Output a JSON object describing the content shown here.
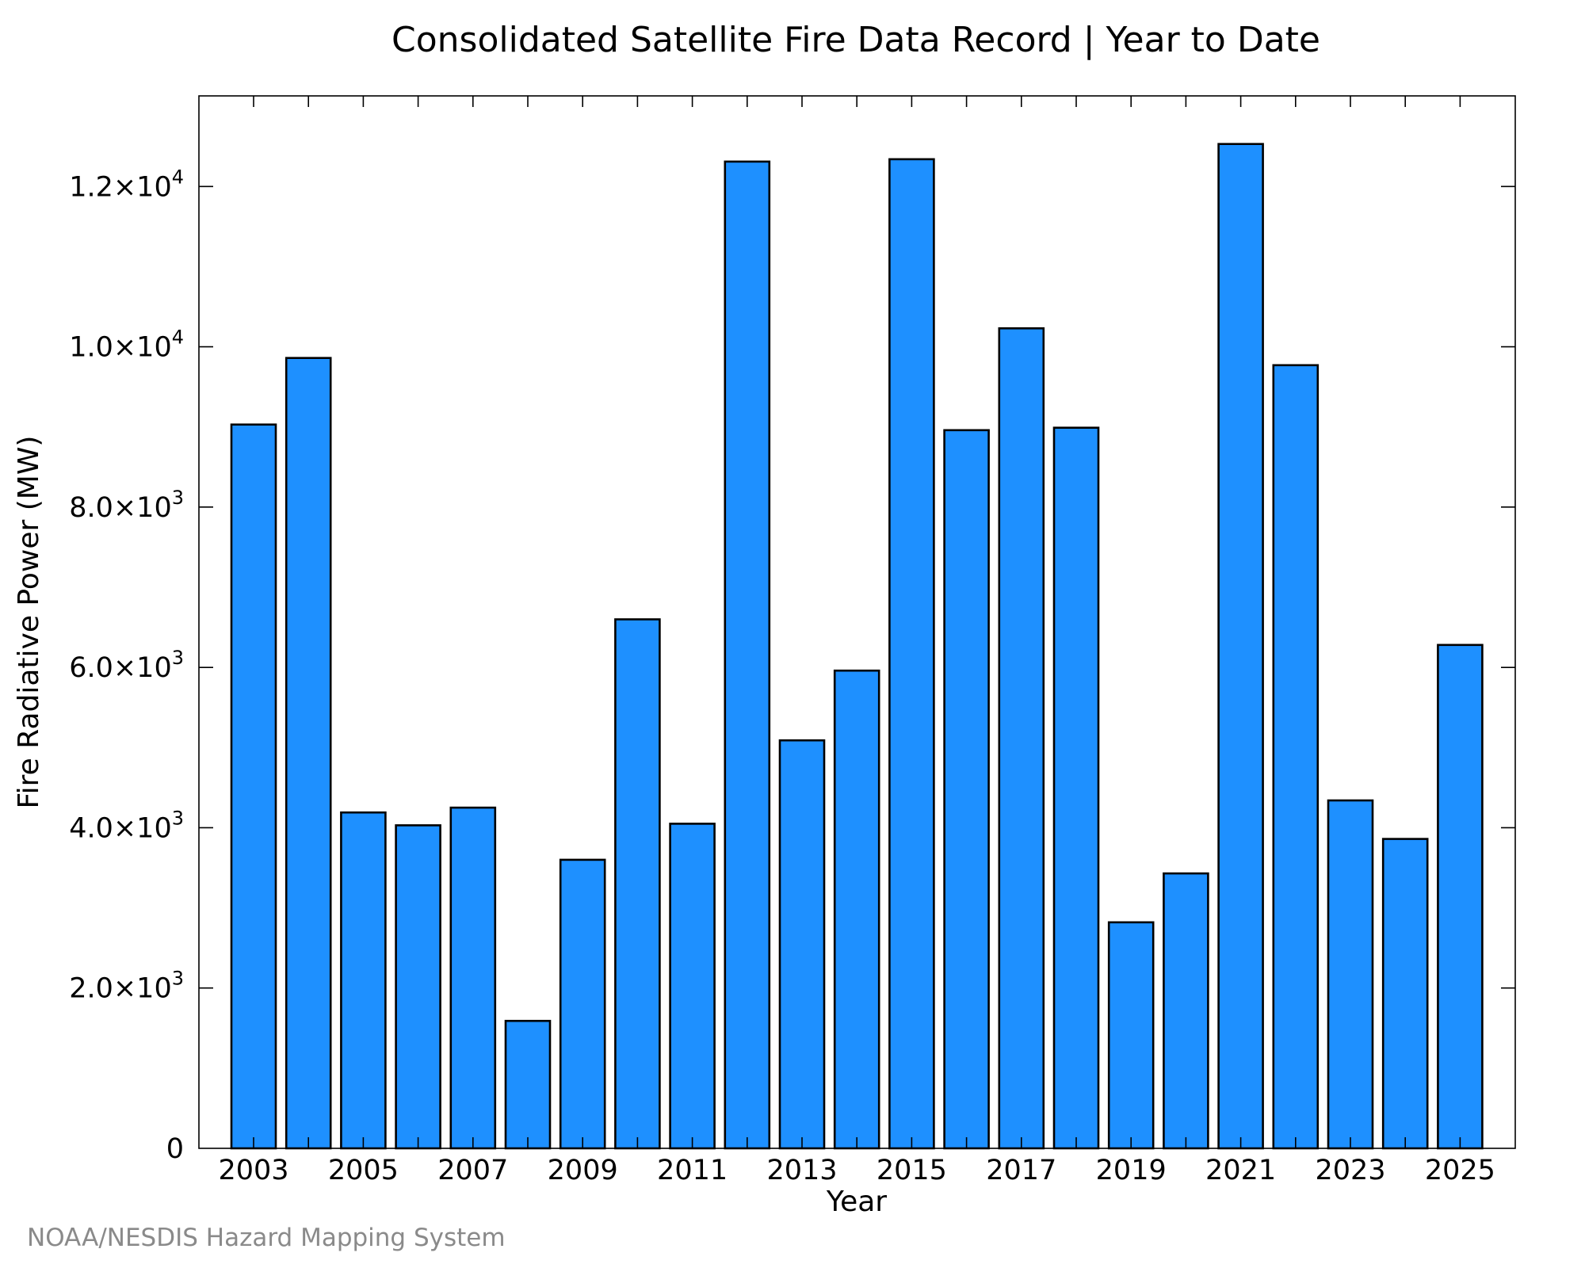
{
  "chart_data": {
    "type": "bar",
    "title": "Consolidated Satellite Fire Data Record | Year to Date",
    "xlabel": "Year",
    "ylabel": "Fire Radiative Power (MW)",
    "ylim": [
      0,
      13130
    ],
    "categories": [
      "2003",
      "2004",
      "2005",
      "2006",
      "2007",
      "2008",
      "2009",
      "2010",
      "2011",
      "2012",
      "2013",
      "2014",
      "2015",
      "2016",
      "2017",
      "2018",
      "2019",
      "2020",
      "2021",
      "2022",
      "2023",
      "2024",
      "2025"
    ],
    "values": [
      9030,
      9860,
      4190,
      4030,
      4250,
      1590,
      3600,
      6600,
      4050,
      12310,
      5090,
      5960,
      12340,
      8960,
      10230,
      8990,
      2820,
      3430,
      12530,
      9770,
      4340,
      3860,
      6280
    ],
    "x_tick_labels": [
      "2003",
      "2005",
      "2007",
      "2009",
      "2011",
      "2013",
      "2015",
      "2017",
      "2019",
      "2021",
      "2023",
      "2025"
    ],
    "y_ticks": [
      {
        "value": 0,
        "mantissa": "0",
        "exponent": ""
      },
      {
        "value": 2000,
        "mantissa": "2.0×10",
        "exponent": "3"
      },
      {
        "value": 4000,
        "mantissa": "4.0×10",
        "exponent": "3"
      },
      {
        "value": 6000,
        "mantissa": "6.0×10",
        "exponent": "3"
      },
      {
        "value": 8000,
        "mantissa": "8.0×10",
        "exponent": "3"
      },
      {
        "value": 10000,
        "mantissa": "1.0×10",
        "exponent": "4"
      },
      {
        "value": 12000,
        "mantissa": "1.2×10",
        "exponent": "4"
      }
    ],
    "grid": false,
    "legend": "none",
    "colors": {
      "bar_fill": "#1e90ff",
      "bar_stroke": "#000000",
      "credit": "#8a8a8a"
    }
  },
  "credit": "NOAA/NESDIS Hazard Mapping System"
}
